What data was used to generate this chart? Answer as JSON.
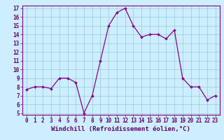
{
  "x": [
    0,
    1,
    2,
    3,
    4,
    5,
    6,
    7,
    8,
    9,
    10,
    11,
    12,
    13,
    14,
    15,
    16,
    17,
    18,
    19,
    20,
    21,
    22,
    23
  ],
  "y": [
    7.7,
    8.0,
    8.0,
    7.8,
    9.0,
    9.0,
    8.5,
    5.0,
    7.0,
    11.0,
    15.0,
    16.5,
    17.0,
    15.0,
    13.7,
    14.0,
    14.0,
    13.5,
    14.5,
    9.0,
    8.0,
    8.0,
    6.5,
    7.0
  ],
  "line_color": "#880088",
  "marker_color": "#880088",
  "bg_color": "#cceeff",
  "grid_color": "#99cccc",
  "xlabel": "Windchill (Refroidissement éolien,°C)",
  "xlim": [
    -0.5,
    23.5
  ],
  "ylim": [
    4.8,
    17.3
  ],
  "yticks": [
    5,
    6,
    7,
    8,
    9,
    10,
    11,
    12,
    13,
    14,
    15,
    16,
    17
  ],
  "xticks": [
    0,
    1,
    2,
    3,
    4,
    5,
    6,
    7,
    8,
    9,
    10,
    11,
    12,
    13,
    14,
    15,
    16,
    17,
    18,
    19,
    20,
    21,
    22,
    23
  ],
  "tick_color": "#660066",
  "tick_fontsize": 5.5,
  "xlabel_fontsize": 6.5,
  "border_color": "#880088"
}
